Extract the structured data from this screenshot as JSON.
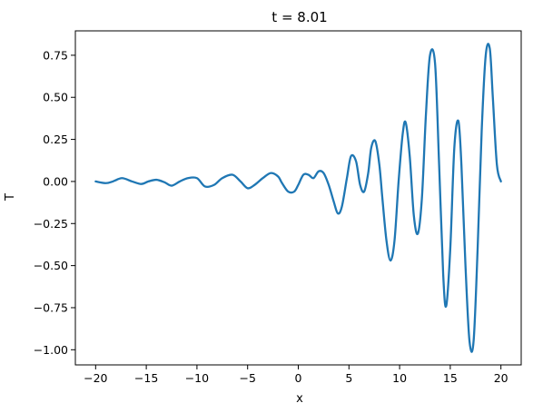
{
  "chart_data": {
    "type": "line",
    "title": "t = 8.01",
    "xlabel": "x",
    "ylabel": "T",
    "xlim": [
      -22,
      22
    ],
    "ylim": [
      -1.09,
      0.895
    ],
    "grid": false,
    "xticks": [
      -20,
      -15,
      -10,
      -5,
      0,
      5,
      10,
      15,
      20
    ],
    "xtick_labels": [
      "−20",
      "−15",
      "−10",
      "−5",
      "0",
      "5",
      "10",
      "15",
      "20"
    ],
    "yticks": [
      -1.0,
      -0.75,
      -0.5,
      -0.25,
      0.0,
      0.25,
      0.5,
      0.75
    ],
    "ytick_labels": [
      "−1.00",
      "−0.75",
      "−0.50",
      "−0.25",
      "0.00",
      "0.25",
      "0.50",
      "0.75"
    ],
    "series": [
      {
        "color": "#1f77b4",
        "x": [
          -20.0,
          -19.0,
          -18.3,
          -17.4,
          -16.4,
          -15.5,
          -14.8,
          -14.0,
          -13.2,
          -12.5,
          -11.7,
          -10.9,
          -10.0,
          -9.2,
          -8.3,
          -7.5,
          -6.5,
          -5.7,
          -5.0,
          -4.3,
          -3.5,
          -2.7,
          -2.0,
          -1.6,
          -1.0,
          -0.4,
          0.0,
          0.5,
          1.0,
          1.5,
          2.0,
          2.5,
          3.0,
          3.5,
          3.9,
          4.3,
          4.8,
          5.2,
          5.7,
          6.1,
          6.5,
          6.9,
          7.2,
          7.6,
          8.0,
          8.3,
          8.7,
          9.1,
          9.5,
          9.9,
          10.3,
          10.6,
          11.0,
          11.4,
          11.8,
          12.2,
          12.6,
          13.0,
          13.5,
          13.9,
          14.3,
          14.6,
          15.0,
          15.4,
          15.8,
          16.1,
          16.5,
          16.9,
          17.3,
          17.7,
          18.1,
          18.5,
          18.9,
          19.2,
          19.6,
          20.0
        ],
        "y": [
          0.0,
          -0.01,
          0.0,
          0.02,
          0.0,
          -0.015,
          0.0,
          0.01,
          -0.005,
          -0.025,
          0.0,
          0.02,
          0.02,
          -0.03,
          -0.02,
          0.02,
          0.04,
          0.0,
          -0.04,
          -0.02,
          0.02,
          0.05,
          0.03,
          -0.01,
          -0.06,
          -0.06,
          -0.02,
          0.04,
          0.04,
          0.02,
          0.06,
          0.05,
          -0.02,
          -0.12,
          -0.19,
          -0.15,
          0.02,
          0.15,
          0.12,
          -0.02,
          -0.06,
          0.05,
          0.2,
          0.24,
          0.1,
          -0.1,
          -0.35,
          -0.47,
          -0.35,
          0.0,
          0.28,
          0.35,
          0.15,
          -0.2,
          -0.31,
          -0.1,
          0.4,
          0.75,
          0.7,
          0.1,
          -0.55,
          -0.74,
          -0.4,
          0.2,
          0.36,
          0.1,
          -0.5,
          -0.95,
          -0.95,
          -0.4,
          0.3,
          0.75,
          0.79,
          0.5,
          0.1,
          0.0
        ]
      }
    ]
  }
}
